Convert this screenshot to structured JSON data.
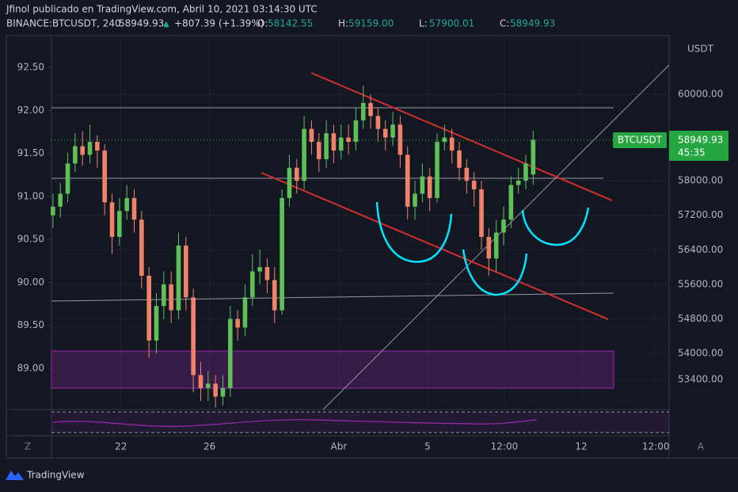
{
  "chart_data": {
    "type": "candlestick",
    "title": "Jfinol publicado en TradingView.com, Abril 10, 2021 03:14:30 UTC",
    "symbol": "BINANCE:BTCUSDT, 240",
    "last": "58949.93",
    "change": "+807.39 (+1.39%)",
    "ohlc": [
      {
        "label": "O:",
        "value": "58142.55"
      },
      {
        "label": "H:",
        "value": "59159.00"
      },
      {
        "label": "L:",
        "value": "57900.01"
      },
      {
        "label": "C:",
        "value": "58949.93"
      }
    ],
    "currency": "USDT",
    "price_tag": {
      "name": "BTCUSDT",
      "value": "58949.93",
      "countdown": "45:35"
    },
    "brand": "TradingView",
    "corner_left": "Z",
    "corner_right": "A",
    "up_color": "#5fc05a",
    "down_color": "#f0826c",
    "grid": true,
    "xlim": [
      -0.2,
      83.4
    ],
    "xticks": [
      {
        "value": 9.2,
        "label": "22"
      },
      {
        "value": 21.2,
        "label": "26"
      },
      {
        "value": 38.7,
        "label": "Abr"
      },
      {
        "value": 50.7,
        "label": "5"
      },
      {
        "value": 61.1,
        "label": "12:00"
      },
      {
        "value": 71.5,
        "label": "12"
      },
      {
        "value": 81.6,
        "label": "12:00"
      }
    ],
    "ylim": [
      52700,
      61360
    ],
    "yticks": [
      {
        "value": 60000,
        "label": "60000.00"
      },
      {
        "value": 58000,
        "label": "58000.00"
      },
      {
        "value": 57200,
        "label": "57200.00"
      },
      {
        "value": 56400,
        "label": "56400.00"
      },
      {
        "value": 55600,
        "label": "55600.00"
      },
      {
        "value": 54800,
        "label": "54800.00"
      },
      {
        "value": 54000,
        "label": "54000.00"
      },
      {
        "value": 53400,
        "label": "53400.00"
      }
    ],
    "y2lim": [
      88.52,
      92.87
    ],
    "y2ticks": [
      {
        "value": 92.5,
        "label": "92.50"
      },
      {
        "value": 92,
        "label": "92.00"
      },
      {
        "value": 91.5,
        "label": "91.50"
      },
      {
        "value": 91,
        "label": "91.00"
      },
      {
        "value": 90.5,
        "label": "90.50"
      },
      {
        "value": 90,
        "label": "90.00"
      },
      {
        "value": 89.5,
        "label": "89.50"
      },
      {
        "value": 89,
        "label": "89.00"
      }
    ],
    "x": [
      0,
      1,
      2,
      3,
      4,
      5,
      6,
      7,
      8,
      9,
      10,
      11,
      12,
      13,
      14,
      15,
      16,
      17,
      18,
      19,
      20,
      21,
      22,
      23,
      24,
      25,
      26,
      27,
      28,
      29,
      30,
      31,
      32,
      33,
      34,
      35,
      36,
      37,
      38,
      39,
      40,
      41,
      42,
      43,
      44,
      45,
      46,
      47,
      48,
      49,
      50,
      51,
      52,
      53,
      54,
      55,
      56,
      57,
      58,
      59,
      60,
      61,
      62,
      63,
      64,
      65
    ],
    "open": [
      57200,
      57400,
      57700,
      58400,
      58800,
      58600,
      58900,
      58700,
      57500,
      56700,
      57300,
      57600,
      57100,
      55800,
      54300,
      55100,
      55600,
      55000,
      56500,
      55300,
      53500,
      53200,
      53300,
      53000,
      53200,
      54800,
      54600,
      55300,
      55900,
      56000,
      55700,
      55000,
      57600,
      58300,
      58000,
      59200,
      58900,
      58500,
      59100,
      58700,
      59000,
      58900,
      59400,
      59800,
      59500,
      59200,
      59000,
      59300,
      58600,
      57400,
      57700,
      58100,
      57600,
      58900,
      59000,
      58700,
      58300,
      58000,
      57800,
      56700,
      56200,
      56800,
      57100,
      57900,
      58000,
      58142.55
    ],
    "high": [
      57700,
      57950,
      58650,
      59100,
      59150,
      59300,
      59050,
      58850,
      57700,
      57600,
      57900,
      57800,
      57300,
      56000,
      55400,
      55900,
      55900,
      56800,
      56700,
      55500,
      53800,
      53600,
      53500,
      53500,
      55100,
      55000,
      55600,
      56300,
      56400,
      56200,
      56000,
      57800,
      58600,
      58500,
      59500,
      59400,
      59100,
      59400,
      59300,
      59300,
      59300,
      59700,
      60200,
      60000,
      59700,
      59400,
      59600,
      59500,
      58800,
      58000,
      58400,
      58300,
      59100,
      59300,
      59200,
      58900,
      58500,
      58200,
      58000,
      56900,
      57100,
      57400,
      58100,
      58300,
      58600,
      59159
    ],
    "low": [
      56900,
      57150,
      57500,
      58200,
      58350,
      58400,
      58300,
      57200,
      56300,
      56500,
      57100,
      56800,
      55500,
      53900,
      54000,
      54800,
      54700,
      54800,
      55000,
      53100,
      52900,
      52900,
      52750,
      52800,
      53000,
      54300,
      54400,
      55100,
      55600,
      55400,
      54700,
      54900,
      57400,
      57700,
      57800,
      58600,
      58200,
      58300,
      58400,
      58500,
      58600,
      58700,
      59200,
      59200,
      58900,
      58700,
      58800,
      58300,
      57100,
      57100,
      57500,
      57300,
      57500,
      58700,
      58400,
      58000,
      57700,
      57400,
      56400,
      55800,
      55900,
      56500,
      56900,
      57700,
      57800,
      57900.01
    ],
    "close": [
      57400,
      57700,
      58400,
      58800,
      58600,
      58900,
      58700,
      57500,
      56700,
      57300,
      57600,
      57100,
      55800,
      54300,
      55100,
      55600,
      55000,
      56500,
      55300,
      53500,
      53200,
      53300,
      53000,
      53200,
      54800,
      54600,
      55300,
      55900,
      56000,
      55700,
      55000,
      57600,
      58300,
      58000,
      59200,
      58900,
      58500,
      59100,
      58700,
      59000,
      58900,
      59400,
      59800,
      59500,
      59200,
      59000,
      59300,
      58600,
      57400,
      57700,
      58100,
      57600,
      58900,
      59000,
      58700,
      58300,
      58000,
      57800,
      56700,
      56200,
      56800,
      57100,
      57900,
      58000,
      58400,
      58949.93
    ]
  }
}
